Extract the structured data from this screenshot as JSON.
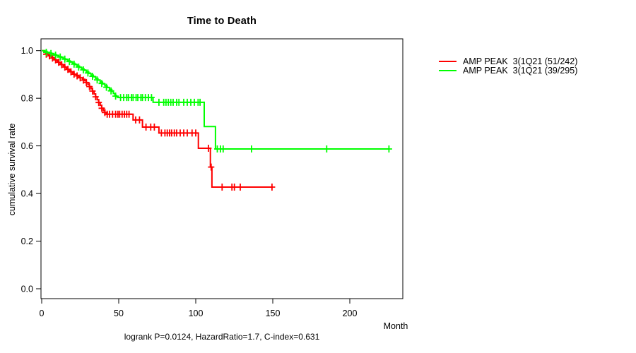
{
  "chart_data": {
    "type": "line",
    "subtype": "kaplan-meier-step",
    "title": "Time to Death",
    "xlabel": "Month",
    "ylabel": "cumulative survival rate",
    "footnote": "logrank P=0.0124, HazardRatio=1.7, C-index=0.631",
    "xlim": [
      0,
      234
    ],
    "ylim": [
      0,
      1
    ],
    "grid": false,
    "legend_position": "right-outside",
    "xticks": [
      {
        "v": 0,
        "label": "0"
      },
      {
        "v": 50,
        "label": "50"
      },
      {
        "v": 100,
        "label": "100"
      },
      {
        "v": 150,
        "label": "150"
      },
      {
        "v": 200,
        "label": "200"
      }
    ],
    "yticks": [
      {
        "v": 0.0,
        "label": "0.0"
      },
      {
        "v": 0.2,
        "label": "0.2"
      },
      {
        "v": 0.4,
        "label": "0.4"
      },
      {
        "v": 0.6,
        "label": "0.6"
      },
      {
        "v": 0.8,
        "label": "0.8"
      },
      {
        "v": 1.0,
        "label": "1.0"
      }
    ],
    "series": [
      {
        "key": "amp-peak-1q21-group1",
        "name": "AMP PEAK  3(1Q21 (51/242)",
        "color": "#ff0000",
        "steps": [
          [
            0,
            1.0
          ],
          [
            1.5,
            0.995
          ],
          [
            2.5,
            0.99
          ],
          [
            3.5,
            0.985
          ],
          [
            4.5,
            0.98
          ],
          [
            5.5,
            0.976
          ],
          [
            6.5,
            0.971
          ],
          [
            8,
            0.966
          ],
          [
            9,
            0.961
          ],
          [
            10,
            0.956
          ],
          [
            11,
            0.951
          ],
          [
            12,
            0.946
          ],
          [
            13,
            0.941
          ],
          [
            14,
            0.936
          ],
          [
            15,
            0.931
          ],
          [
            16,
            0.926
          ],
          [
            17,
            0.921
          ],
          [
            18,
            0.916
          ],
          [
            19,
            0.911
          ],
          [
            20,
            0.906
          ],
          [
            21,
            0.901
          ],
          [
            22.5,
            0.896
          ],
          [
            24,
            0.891
          ],
          [
            25,
            0.886
          ],
          [
            26.5,
            0.88
          ],
          [
            28,
            0.873
          ],
          [
            29,
            0.866
          ],
          [
            30,
            0.858
          ],
          [
            31,
            0.849
          ],
          [
            32,
            0.84
          ],
          [
            33,
            0.83
          ],
          [
            34,
            0.818
          ],
          [
            35,
            0.806
          ],
          [
            36,
            0.794
          ],
          [
            37,
            0.782
          ],
          [
            38,
            0.77
          ],
          [
            39,
            0.758
          ],
          [
            40,
            0.748
          ],
          [
            41,
            0.74
          ],
          [
            42,
            0.733
          ],
          [
            59.3,
            0.709
          ],
          [
            65.4,
            0.679
          ],
          [
            76.1,
            0.654
          ],
          [
            101.7,
            0.59
          ],
          [
            109.5,
            0.511
          ],
          [
            110.5,
            0.427
          ],
          [
            150,
            0.427
          ]
        ],
        "censors": [
          [
            3,
            0.985
          ],
          [
            5,
            0.978
          ],
          [
            7,
            0.969
          ],
          [
            9,
            0.961
          ],
          [
            11,
            0.951
          ],
          [
            13,
            0.941
          ],
          [
            15,
            0.931
          ],
          [
            17,
            0.921
          ],
          [
            19,
            0.911
          ],
          [
            21,
            0.901
          ],
          [
            23,
            0.894
          ],
          [
            25,
            0.886
          ],
          [
            27,
            0.876
          ],
          [
            29,
            0.866
          ],
          [
            31,
            0.849
          ],
          [
            33,
            0.83
          ],
          [
            35,
            0.806
          ],
          [
            37,
            0.782
          ],
          [
            39,
            0.758
          ],
          [
            41,
            0.74
          ],
          [
            42.5,
            0.733
          ],
          [
            44,
            0.733
          ],
          [
            46,
            0.733
          ],
          [
            48,
            0.733
          ],
          [
            49.5,
            0.733
          ],
          [
            50.6,
            0.733
          ],
          [
            52.2,
            0.733
          ],
          [
            53.7,
            0.733
          ],
          [
            55.2,
            0.733
          ],
          [
            56.7,
            0.733
          ],
          [
            61,
            0.709
          ],
          [
            63.5,
            0.709
          ],
          [
            67.7,
            0.679
          ],
          [
            70.8,
            0.679
          ],
          [
            73.1,
            0.679
          ],
          [
            77.7,
            0.654
          ],
          [
            80,
            0.654
          ],
          [
            81.5,
            0.654
          ],
          [
            83,
            0.654
          ],
          [
            84.3,
            0.654
          ],
          [
            86.1,
            0.654
          ],
          [
            87.6,
            0.654
          ],
          [
            89.9,
            0.654
          ],
          [
            92.2,
            0.654
          ],
          [
            94.5,
            0.654
          ],
          [
            97.6,
            0.654
          ],
          [
            100,
            0.654
          ],
          [
            108.2,
            0.59
          ],
          [
            110,
            0.511
          ],
          [
            117.1,
            0.427
          ],
          [
            123.5,
            0.427
          ],
          [
            125.1,
            0.427
          ],
          [
            128.9,
            0.427
          ],
          [
            149.5,
            0.427
          ]
        ]
      },
      {
        "key": "amp-peak-1q21-group2",
        "name": "AMP PEAK  3(1Q21 (39/295)",
        "color": "#00ff00",
        "steps": [
          [
            0,
            1.0
          ],
          [
            2,
            0.997
          ],
          [
            3.5,
            0.993
          ],
          [
            5,
            0.99
          ],
          [
            6.5,
            0.986
          ],
          [
            8,
            0.983
          ],
          [
            9.5,
            0.979
          ],
          [
            11,
            0.975
          ],
          [
            12.5,
            0.971
          ],
          [
            14,
            0.966
          ],
          [
            15.5,
            0.962
          ],
          [
            17,
            0.957
          ],
          [
            18.5,
            0.952
          ],
          [
            20,
            0.947
          ],
          [
            21.5,
            0.941
          ],
          [
            23,
            0.935
          ],
          [
            24.5,
            0.929
          ],
          [
            26,
            0.923
          ],
          [
            27.5,
            0.917
          ],
          [
            29,
            0.911
          ],
          [
            30.5,
            0.904
          ],
          [
            32,
            0.897
          ],
          [
            33.5,
            0.89
          ],
          [
            35,
            0.883
          ],
          [
            36.5,
            0.876
          ],
          [
            38,
            0.868
          ],
          [
            39.5,
            0.86
          ],
          [
            41,
            0.852
          ],
          [
            42.5,
            0.845
          ],
          [
            44,
            0.837
          ],
          [
            45.5,
            0.829
          ],
          [
            46.5,
            0.82
          ],
          [
            47.5,
            0.812
          ],
          [
            48.5,
            0.806
          ],
          [
            49.5,
            0.803
          ],
          [
            72.3,
            0.783
          ],
          [
            105.5,
            0.681
          ],
          [
            112.8,
            0.587
          ],
          [
            225.4,
            0.587
          ]
        ],
        "censors": [
          [
            3,
            0.993
          ],
          [
            6,
            0.988
          ],
          [
            9,
            0.981
          ],
          [
            12,
            0.973
          ],
          [
            15,
            0.964
          ],
          [
            18,
            0.954
          ],
          [
            21,
            0.943
          ],
          [
            24,
            0.931
          ],
          [
            27,
            0.919
          ],
          [
            30,
            0.906
          ],
          [
            33,
            0.892
          ],
          [
            36,
            0.877
          ],
          [
            39,
            0.862
          ],
          [
            42,
            0.846
          ],
          [
            45,
            0.831
          ],
          [
            48,
            0.809
          ],
          [
            51.2,
            0.803
          ],
          [
            53.2,
            0.803
          ],
          [
            55.2,
            0.803
          ],
          [
            56.3,
            0.803
          ],
          [
            58.3,
            0.803
          ],
          [
            59.3,
            0.803
          ],
          [
            61.3,
            0.803
          ],
          [
            62.4,
            0.803
          ],
          [
            64.4,
            0.803
          ],
          [
            65.4,
            0.803
          ],
          [
            67.3,
            0.803
          ],
          [
            69.3,
            0.803
          ],
          [
            71.3,
            0.803
          ],
          [
            76.1,
            0.783
          ],
          [
            79.2,
            0.783
          ],
          [
            80.7,
            0.783
          ],
          [
            82.2,
            0.783
          ],
          [
            83.8,
            0.783
          ],
          [
            85.3,
            0.783
          ],
          [
            87.6,
            0.783
          ],
          [
            89.1,
            0.783
          ],
          [
            92.2,
            0.783
          ],
          [
            94.5,
            0.783
          ],
          [
            96.8,
            0.783
          ],
          [
            99.1,
            0.783
          ],
          [
            101.5,
            0.783
          ],
          [
            102.8,
            0.783
          ],
          [
            114,
            0.587
          ],
          [
            116,
            0.587
          ],
          [
            117.8,
            0.587
          ],
          [
            136.2,
            0.587
          ],
          [
            185,
            0.587
          ],
          [
            225.4,
            0.587
          ]
        ]
      }
    ]
  }
}
